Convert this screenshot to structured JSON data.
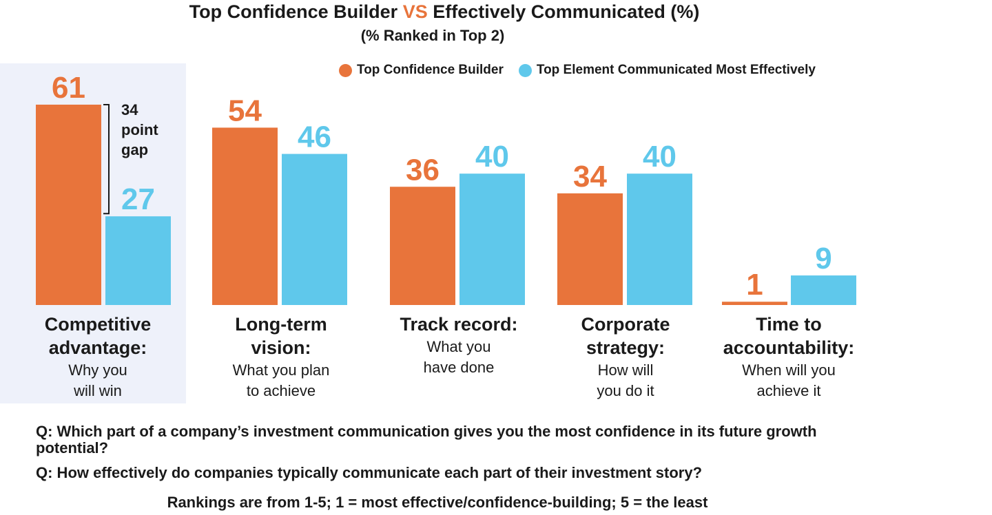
{
  "title_part1": "Top Confidence Builder",
  "title_vs": "VS",
  "title_part2": "Effectively Communicated (%)",
  "subtitle": "(% Ranked in Top 2)",
  "colors": {
    "confidence": "#E8743B",
    "communicated": "#5FC8EB",
    "highlight": "#EEF1FA",
    "text": "#1a1a1a"
  },
  "gap_annotation": {
    "line1": "34",
    "line2": "point",
    "line3": "gap"
  },
  "categories": [
    {
      "main_line1": "Competitive",
      "main_line2": "advantage:",
      "sub_line1": "Why you",
      "sub_line2": "will win"
    },
    {
      "main_line1": "Long-term",
      "main_line2": "vision:",
      "sub_line1": "What you plan",
      "sub_line2": "to achieve"
    },
    {
      "main_line1": "Track record:",
      "main_line2": "",
      "sub_line1": "What you",
      "sub_line2": "have done"
    },
    {
      "main_line1": "Corporate",
      "main_line2": "strategy:",
      "sub_line1": "How will",
      "sub_line2": "you do it"
    },
    {
      "main_line1": "Time to",
      "main_line2": "accountability:",
      "sub_line1": "When will you",
      "sub_line2": "achieve it"
    }
  ],
  "questions": {
    "q1": "Q: Which part of a company’s investment communication gives you the most confidence in its future growth potential?",
    "q2": "Q: How effectively do companies typically communicate each part of their investment story?"
  },
  "ranking_note": "Rankings are from 1-5; 1 = most effective/confidence-building; 5 = the least",
  "chart_data": {
    "type": "bar",
    "title": "Top Confidence Builder VS Effectively Communicated (%)",
    "subtitle": "(% Ranked in Top 2)",
    "categories": [
      "Competitive advantage: Why you will win",
      "Long-term vision: What you plan to achieve",
      "Track record: What you have done",
      "Corporate strategy: How will you do it",
      "Time to accountability: When will you achieve it"
    ],
    "series": [
      {
        "name": "Top Confidence Builder",
        "color": "#E8743B",
        "values": [
          61,
          54,
          36,
          34,
          1
        ]
      },
      {
        "name": "Top Element Communicated Most Effectively",
        "color": "#5FC8EB",
        "values": [
          27,
          46,
          40,
          40,
          9
        ]
      }
    ],
    "xlabel": "",
    "ylabel": "",
    "ylim": [
      0,
      61
    ],
    "grid": false,
    "legend_position": "top-right",
    "data_labels": true
  }
}
